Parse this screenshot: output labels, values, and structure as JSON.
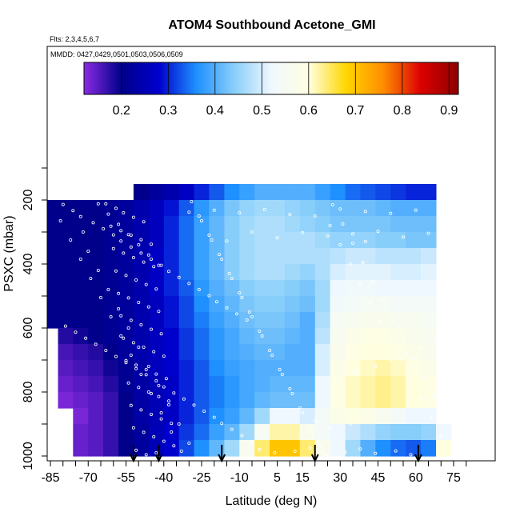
{
  "chart_data": {
    "type": "heatmap",
    "title": "ATOM4 Southbound Acetone_GMI",
    "subtitle_flights": "Flts: 2,3,4,5,6,7",
    "subtitle_dates": "MMDD: 0427,0429,0501,0503,0506,0509",
    "xlabel": "Latitude (deg N)",
    "ylabel": "PSXC (mbar)",
    "x_ticks": [
      -85,
      -70,
      -55,
      -40,
      -25,
      -10,
      5,
      15,
      30,
      45,
      60,
      75
    ],
    "x_tick_labels": [
      "-85",
      "-70",
      "-55",
      "-40",
      "-25",
      "-10",
      "5",
      "15",
      "30",
      "45",
      "60",
      "75"
    ],
    "y_ticks": [
      200,
      400,
      600,
      800,
      1000
    ],
    "y_tick_labels": [
      "200",
      "400",
      "600",
      "800",
      "1000"
    ],
    "ylim": [
      1000,
      100
    ],
    "colorbar": {
      "ticks": [
        0.2,
        0.3,
        0.4,
        0.5,
        0.6,
        0.7,
        0.8,
        0.9
      ],
      "tick_labels": [
        "0.2",
        "0.3",
        "0.4",
        "0.5",
        "0.6",
        "0.7",
        "0.8",
        "0.9"
      ],
      "range": [
        0.12,
        0.92
      ],
      "stops": [
        "#8a2be2",
        "#00008b",
        "#0000cd",
        "#1e90ff",
        "#87cefa",
        "#f0f8ff",
        "#ffffe0",
        "#ffd700",
        "#ff8c00",
        "#dc0000",
        "#8b0000"
      ]
    },
    "x_grid": [
      -85,
      -79,
      -73,
      -67,
      -61,
      -55,
      -49,
      -43,
      -37,
      -31,
      -25,
      -19,
      -13,
      -7,
      -1,
      5,
      11,
      17,
      23,
      29,
      35,
      41,
      47,
      53,
      59,
      65,
      71
    ],
    "p_grid": [
      175,
      225,
      275,
      325,
      375,
      425,
      475,
      525,
      575,
      625,
      675,
      725,
      775,
      825,
      875,
      925,
      975
    ],
    "values": [
      [
        null,
        null,
        null,
        null,
        null,
        null,
        0.2,
        0.22,
        0.24,
        0.27,
        0.3,
        0.33,
        0.36,
        0.38,
        0.4,
        0.4,
        0.4,
        0.4,
        0.38,
        0.36,
        0.34,
        0.33,
        0.32,
        0.31,
        0.3,
        0.3,
        null
      ],
      [
        0.2,
        0.2,
        0.2,
        0.2,
        0.21,
        0.22,
        0.24,
        0.26,
        0.29,
        0.33,
        0.37,
        0.4,
        0.43,
        0.45,
        0.46,
        0.46,
        0.45,
        0.44,
        0.43,
        0.42,
        0.42,
        0.42,
        0.41,
        0.4,
        0.4,
        0.4,
        null
      ],
      [
        0.2,
        0.2,
        0.2,
        0.2,
        0.21,
        0.22,
        0.24,
        0.26,
        0.3,
        0.34,
        0.38,
        0.41,
        0.44,
        0.46,
        0.47,
        0.47,
        0.46,
        0.45,
        0.44,
        0.43,
        0.43,
        0.43,
        0.43,
        0.42,
        0.42,
        0.42,
        null
      ],
      [
        0.2,
        0.2,
        0.2,
        0.2,
        0.21,
        0.22,
        0.24,
        0.26,
        0.3,
        0.34,
        0.38,
        0.41,
        0.44,
        0.46,
        0.47,
        0.47,
        0.47,
        0.47,
        0.46,
        0.45,
        0.45,
        0.45,
        0.44,
        0.44,
        0.43,
        0.43,
        null
      ],
      [
        0.2,
        0.2,
        0.2,
        0.2,
        0.21,
        0.22,
        0.24,
        0.27,
        0.3,
        0.34,
        0.38,
        0.41,
        0.44,
        0.46,
        0.47,
        0.47,
        0.47,
        0.47,
        0.47,
        0.48,
        0.49,
        0.49,
        0.48,
        0.48,
        0.48,
        0.49,
        null
      ],
      [
        0.2,
        0.2,
        0.2,
        0.2,
        0.21,
        0.22,
        0.24,
        0.27,
        0.3,
        0.34,
        0.38,
        0.41,
        0.44,
        0.46,
        0.47,
        0.47,
        0.46,
        0.45,
        0.47,
        0.5,
        0.51,
        0.51,
        0.51,
        0.5,
        0.5,
        0.51,
        null
      ],
      [
        0.2,
        0.2,
        0.2,
        0.2,
        0.21,
        0.22,
        0.24,
        0.27,
        0.3,
        0.33,
        0.37,
        0.4,
        0.42,
        0.44,
        0.45,
        0.45,
        0.44,
        0.43,
        0.46,
        0.52,
        0.53,
        0.53,
        0.52,
        0.52,
        0.52,
        0.52,
        null
      ],
      [
        0.2,
        0.2,
        0.2,
        0.2,
        0.21,
        0.22,
        0.24,
        0.26,
        0.29,
        0.32,
        0.36,
        0.39,
        0.41,
        0.43,
        0.44,
        0.44,
        0.43,
        0.42,
        0.46,
        0.53,
        0.54,
        0.55,
        0.55,
        0.54,
        0.54,
        0.54,
        null
      ],
      [
        0.2,
        0.2,
        0.2,
        0.2,
        0.21,
        0.22,
        0.24,
        0.26,
        0.29,
        0.32,
        0.35,
        0.38,
        0.4,
        0.42,
        0.43,
        0.43,
        0.42,
        0.4,
        0.47,
        0.55,
        0.56,
        0.57,
        0.57,
        0.56,
        0.56,
        0.55,
        null
      ],
      [
        null,
        0.18,
        0.19,
        0.2,
        0.21,
        0.22,
        0.24,
        0.26,
        0.28,
        0.31,
        0.34,
        0.37,
        0.39,
        0.41,
        0.42,
        0.42,
        0.41,
        0.4,
        0.48,
        0.56,
        0.58,
        0.59,
        0.59,
        0.58,
        0.57,
        0.56,
        null
      ],
      [
        null,
        0.16,
        0.17,
        0.18,
        0.2,
        0.22,
        0.24,
        0.26,
        0.28,
        0.31,
        0.34,
        0.37,
        0.39,
        0.4,
        0.41,
        0.41,
        0.4,
        0.4,
        0.5,
        0.57,
        0.59,
        0.6,
        0.6,
        0.59,
        0.58,
        0.57,
        null
      ],
      [
        null,
        0.15,
        0.16,
        0.17,
        0.19,
        0.21,
        0.23,
        0.26,
        0.28,
        0.3,
        0.33,
        0.36,
        0.38,
        0.39,
        0.4,
        0.4,
        0.4,
        0.4,
        0.5,
        0.58,
        0.6,
        0.61,
        0.62,
        0.61,
        0.59,
        0.58,
        null
      ],
      [
        null,
        0.14,
        0.15,
        0.16,
        0.18,
        0.21,
        0.23,
        0.25,
        0.27,
        0.3,
        0.33,
        0.35,
        0.37,
        0.39,
        0.4,
        0.41,
        0.41,
        0.41,
        0.52,
        0.59,
        0.61,
        0.62,
        0.63,
        0.62,
        0.6,
        0.59,
        null
      ],
      [
        null,
        0.13,
        0.14,
        0.15,
        0.17,
        0.2,
        0.23,
        0.25,
        0.27,
        0.3,
        0.33,
        0.35,
        0.37,
        0.39,
        0.41,
        0.42,
        0.42,
        0.42,
        0.52,
        0.59,
        0.61,
        0.62,
        0.63,
        0.62,
        0.6,
        0.59,
        null
      ],
      [
        null,
        null,
        0.13,
        0.15,
        0.17,
        0.2,
        0.23,
        0.25,
        0.27,
        0.3,
        0.33,
        0.36,
        0.38,
        0.41,
        0.46,
        0.52,
        0.52,
        0.5,
        0.54,
        0.58,
        0.59,
        0.58,
        0.56,
        0.54,
        0.52,
        0.52,
        null
      ],
      [
        null,
        null,
        0.14,
        0.15,
        0.17,
        0.2,
        0.22,
        0.25,
        0.28,
        0.31,
        0.34,
        0.38,
        0.41,
        0.46,
        0.55,
        0.62,
        0.62,
        0.57,
        0.54,
        0.52,
        0.49,
        0.47,
        0.45,
        0.44,
        0.44,
        0.45,
        0.52
      ],
      [
        null,
        null,
        0.14,
        0.15,
        0.17,
        0.2,
        0.22,
        0.25,
        0.28,
        0.32,
        0.36,
        0.41,
        0.46,
        0.56,
        0.64,
        0.7,
        0.7,
        0.64,
        0.57,
        0.52,
        0.46,
        0.4,
        0.36,
        0.34,
        0.33,
        0.35,
        0.6
      ]
    ],
    "sample_points": [
      [
        -80,
        214
      ],
      [
        -76,
        233
      ],
      [
        -73,
        252
      ],
      [
        -68,
        271
      ],
      [
        -64,
        290
      ],
      [
        -60,
        309
      ],
      [
        -57,
        328
      ],
      [
        -53,
        347
      ],
      [
        -49,
        366
      ],
      [
        -45,
        385
      ],
      [
        -41,
        404
      ],
      [
        -38,
        423
      ],
      [
        -34,
        442
      ],
      [
        -30,
        461
      ],
      [
        -26,
        480
      ],
      [
        -22,
        499
      ],
      [
        -19,
        518
      ],
      [
        -15,
        537
      ],
      [
        -11,
        556
      ],
      [
        -7,
        575
      ],
      [
        -79,
        594
      ],
      [
        -75,
        613
      ],
      [
        -71,
        632
      ],
      [
        -67,
        651
      ],
      [
        -63,
        670
      ],
      [
        -59,
        689
      ],
      [
        -55,
        708
      ],
      [
        -51,
        727
      ],
      [
        -47,
        746
      ],
      [
        -43,
        765
      ],
      [
        -40,
        784
      ],
      [
        -36,
        803
      ],
      [
        -32,
        822
      ],
      [
        -28,
        841
      ],
      [
        -24,
        860
      ],
      [
        -20,
        879
      ],
      [
        -17,
        898
      ],
      [
        -13,
        917
      ],
      [
        -9,
        936
      ],
      [
        -5,
        955
      ],
      [
        -72,
        300
      ],
      [
        -70,
        360
      ],
      [
        -66,
        420
      ],
      [
        -62,
        480
      ],
      [
        -58,
        540
      ],
      [
        -54,
        600
      ],
      [
        -50,
        660
      ],
      [
        -46,
        720
      ],
      [
        -42,
        780
      ],
      [
        -38,
        840
      ],
      [
        -34,
        900
      ],
      [
        -30,
        960
      ],
      [
        -26,
        250
      ],
      [
        -22,
        310
      ],
      [
        -18,
        370
      ],
      [
        -14,
        430
      ],
      [
        -10,
        490
      ],
      [
        -6,
        550
      ],
      [
        -2,
        610
      ],
      [
        2,
        670
      ],
      [
        6,
        730
      ],
      [
        10,
        790
      ],
      [
        14,
        850
      ],
      [
        18,
        910
      ],
      [
        22,
        970
      ],
      [
        26,
        280
      ],
      [
        30,
        340
      ],
      [
        34,
        400
      ],
      [
        38,
        460
      ],
      [
        42,
        520
      ],
      [
        46,
        580
      ],
      [
        50,
        640
      ],
      [
        54,
        700
      ],
      [
        58,
        760
      ],
      [
        62,
        820
      ],
      [
        66,
        880
      ],
      [
        70,
        940
      ],
      [
        -81,
        265
      ],
      [
        -77,
        325
      ],
      [
        -73,
        385
      ],
      [
        -69,
        445
      ],
      [
        -65,
        505
      ],
      [
        -61,
        565
      ],
      [
        -57,
        625
      ],
      [
        -53,
        685
      ],
      [
        -49,
        745
      ],
      [
        -45,
        805
      ],
      [
        -41,
        865
      ],
      [
        -37,
        925
      ],
      [
        -33,
        985
      ],
      [
        -29,
        205
      ],
      [
        -25,
        265
      ],
      [
        -21,
        325
      ],
      [
        -17,
        385
      ],
      [
        -13,
        445
      ],
      [
        -9,
        505
      ],
      [
        -5,
        565
      ],
      [
        -1,
        625
      ],
      [
        3,
        685
      ],
      [
        7,
        745
      ],
      [
        11,
        805
      ],
      [
        15,
        865
      ],
      [
        19,
        925
      ],
      [
        23,
        985
      ],
      [
        27,
        215
      ],
      [
        31,
        275
      ],
      [
        35,
        335
      ],
      [
        39,
        395
      ],
      [
        43,
        455
      ],
      [
        47,
        515
      ],
      [
        51,
        575
      ],
      [
        55,
        635
      ],
      [
        59,
        695
      ],
      [
        63,
        755
      ],
      [
        67,
        815
      ],
      [
        -66,
        212
      ],
      [
        -62,
        244
      ],
      [
        -58,
        276
      ],
      [
        -54,
        308
      ],
      [
        -50,
        340
      ],
      [
        -46,
        372
      ],
      [
        -42,
        404
      ],
      [
        -63,
        212
      ],
      [
        -59,
        226
      ],
      [
        -56,
        240
      ],
      [
        -52,
        254
      ],
      [
        -48,
        268
      ],
      [
        -61,
        282
      ],
      [
        -57,
        296
      ],
      [
        -53,
        310
      ],
      [
        -49,
        324
      ],
      [
        -45,
        338
      ],
      [
        -60,
        352
      ],
      [
        -56,
        366
      ],
      [
        -52,
        380
      ],
      [
        -48,
        394
      ],
      [
        -44,
        408
      ],
      [
        -59,
        422
      ],
      [
        -55,
        436
      ],
      [
        -51,
        450
      ],
      [
        -47,
        464
      ],
      [
        -43,
        478
      ],
      [
        -58,
        492
      ],
      [
        -54,
        506
      ],
      [
        -50,
        520
      ],
      [
        -46,
        534
      ],
      [
        -42,
        548
      ],
      [
        -57,
        562
      ],
      [
        -53,
        576
      ],
      [
        -49,
        590
      ],
      [
        -45,
        604
      ],
      [
        -41,
        618
      ],
      [
        -56,
        632
      ],
      [
        -52,
        646
      ],
      [
        -48,
        660
      ],
      [
        -44,
        674
      ],
      [
        -40,
        688
      ],
      [
        -55,
        702
      ],
      [
        -51,
        716
      ],
      [
        -47,
        730
      ],
      [
        -43,
        744
      ],
      [
        -39,
        758
      ],
      [
        -54,
        772
      ],
      [
        -50,
        786
      ],
      [
        -46,
        800
      ],
      [
        -42,
        814
      ],
      [
        -38,
        828
      ],
      [
        -53,
        842
      ],
      [
        -49,
        856
      ],
      [
        -45,
        870
      ],
      [
        -41,
        884
      ],
      [
        -37,
        898
      ],
      [
        -52,
        912
      ],
      [
        -48,
        926
      ],
      [
        -44,
        940
      ],
      [
        -40,
        954
      ],
      [
        -36,
        968
      ],
      [
        -51,
        982
      ],
      [
        -47,
        996
      ],
      [
        -43,
        990
      ],
      [
        -20,
        232
      ],
      [
        -10,
        240
      ],
      [
        0,
        230
      ],
      [
        10,
        245
      ],
      [
        20,
        250
      ],
      [
        30,
        228
      ],
      [
        40,
        236
      ],
      [
        50,
        242
      ],
      [
        60,
        232
      ],
      [
        -30,
        238
      ],
      [
        -5,
        300
      ],
      [
        5,
        318
      ],
      [
        15,
        302
      ],
      [
        25,
        312
      ],
      [
        35,
        306
      ],
      [
        45,
        298
      ],
      [
        55,
        316
      ],
      [
        65,
        304
      ],
      [
        -15,
        328
      ],
      [
        40,
        330
      ],
      [
        -2,
        980
      ],
      [
        4,
        990
      ],
      [
        12,
        985
      ],
      [
        18,
        975
      ],
      [
        24,
        995
      ],
      [
        32,
        988
      ],
      [
        38,
        978
      ],
      [
        44,
        992
      ],
      [
        52,
        984
      ],
      [
        58,
        996
      ],
      [
        20,
        890
      ],
      [
        26,
        910
      ],
      [
        34,
        900
      ],
      [
        28,
        760
      ],
      [
        36,
        740
      ],
      [
        44,
        720
      ],
      [
        50,
        700
      ],
      [
        56,
        680
      ],
      [
        62,
        660
      ],
      [
        68,
        640
      ]
    ],
    "arrows_lat": [
      -52,
      -42,
      -17,
      20,
      61
    ]
  }
}
